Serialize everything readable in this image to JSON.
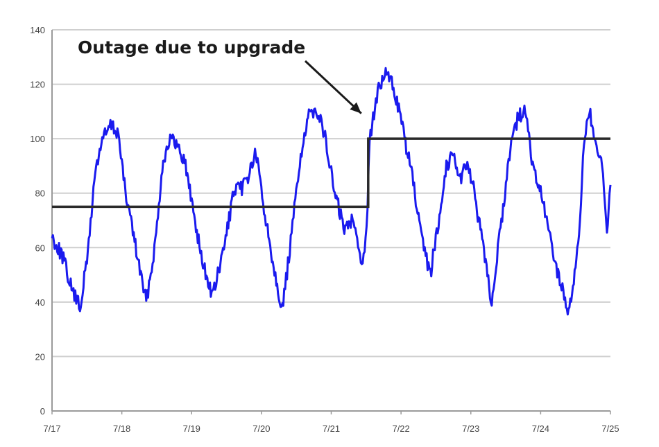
{
  "chart_data": {
    "type": "line",
    "title": "",
    "xlabel": "",
    "ylabel": "",
    "x_ticks": [
      "7/17",
      "7/18",
      "7/19",
      "7/20",
      "7/21",
      "7/22",
      "7/23",
      "7/24",
      "7/25"
    ],
    "y_ticks": [
      0,
      20,
      40,
      60,
      80,
      100,
      120,
      140
    ],
    "xlim": [
      0,
      8
    ],
    "ylim": [
      0,
      140
    ],
    "grid": "horizontal",
    "legend": "none",
    "colors": {
      "traffic": "#1a1aee",
      "capacity": "#2a2a2a",
      "grid": "#cfcfcf"
    },
    "series": [
      {
        "style": "noisy daily cycle",
        "x_unit": "days from 7/17",
        "x": [
          0.0,
          0.15,
          0.28,
          0.4,
          0.5,
          0.62,
          0.72,
          0.85,
          0.95,
          1.05,
          1.12,
          1.22,
          1.35,
          1.48,
          1.58,
          1.68,
          1.78,
          1.9,
          2.05,
          2.15,
          2.3,
          2.45,
          2.6,
          2.72,
          2.82,
          2.92,
          3.05,
          3.2,
          3.3,
          3.42,
          3.55,
          3.68,
          3.78,
          3.9,
          4.05,
          4.2,
          4.32,
          4.45,
          4.52,
          4.55,
          4.6,
          4.68,
          4.78,
          4.88,
          4.98,
          5.05,
          5.15,
          5.3,
          5.42,
          5.55,
          5.65,
          5.75,
          5.85,
          5.95,
          6.05,
          6.2,
          6.3,
          6.45,
          6.58,
          6.68,
          6.78,
          6.9,
          7.0,
          7.1,
          7.25,
          7.4,
          7.55,
          7.62,
          7.7,
          7.8,
          7.88,
          7.95,
          8.0
        ],
        "y": [
          64,
          57,
          45,
          38,
          55,
          88,
          100,
          105,
          102,
          80,
          72,
          57,
          40,
          62,
          90,
          100,
          98,
          92,
          70,
          55,
          42,
          58,
          80,
          82,
          87,
          95,
          72,
          50,
          37,
          62,
          92,
          108,
          112,
          102,
          80,
          66,
          72,
          52,
          75,
          100,
          108,
          118,
          124,
          120,
          110,
          100,
          88,
          62,
          50,
          72,
          90,
          95,
          85,
          92,
          80,
          56,
          40,
          72,
          100,
          108,
          110,
          88,
          80,
          68,
          50,
          36,
          62,
          100,
          110,
          95,
          90,
          65,
          83
        ]
      },
      {
        "style": "step line",
        "x_unit": "days from 7/17",
        "x": [
          0.0,
          4.53,
          4.53,
          8.0
        ],
        "y": [
          75,
          75,
          100,
          100
        ]
      }
    ],
    "annotations": [
      {
        "text": "Outage due to upgrade",
        "x": 4.53,
        "y": 108
      }
    ]
  }
}
